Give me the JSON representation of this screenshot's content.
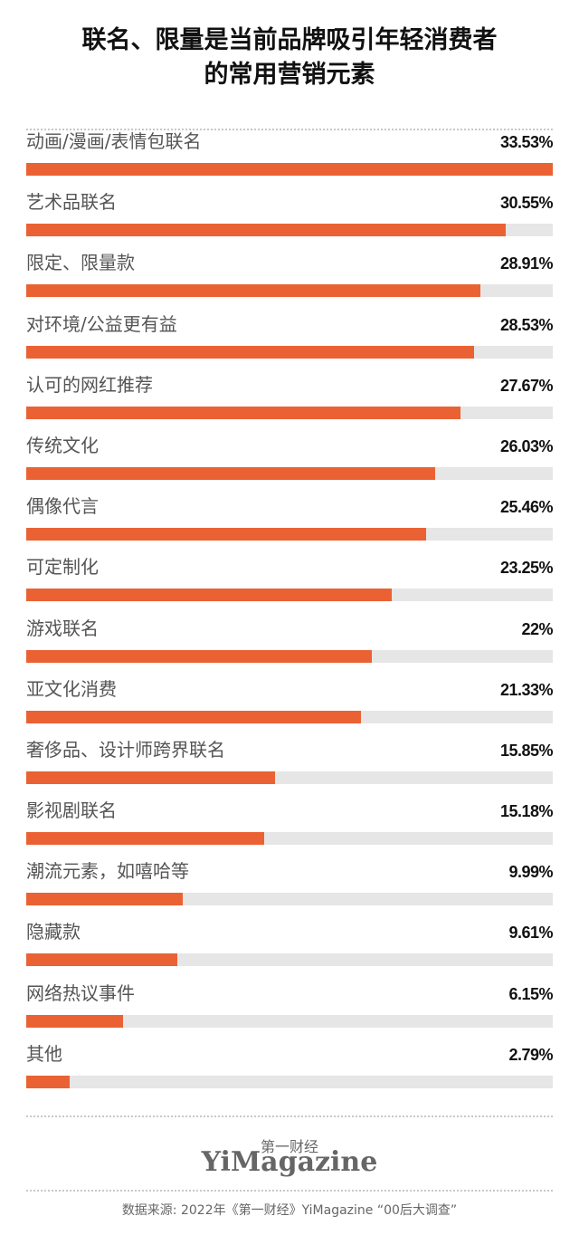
{
  "header": {
    "title_line1": "联名、限量是当前品牌吸引年轻消费者",
    "title_line2": "的常用营销元素"
  },
  "footer": {
    "logo_cn": "第一财经",
    "logo_en": "YiMagazine",
    "source": "数据来源: 2022年《第一财经》YiMagazine “00后大调查”"
  },
  "colors": {
    "bar": "#ea6234",
    "track": "#e6e6e6"
  },
  "chart_data": {
    "type": "bar",
    "orientation": "horizontal",
    "title": "联名、限量是当前品牌吸引年轻消费者的常用营销元素",
    "xlabel": "",
    "ylabel": "",
    "xlim": [
      0,
      33.53
    ],
    "grid": false,
    "legend": null,
    "categories": [
      "动画/漫画/表情包联名",
      "艺术品联名",
      "限定、限量款",
      "对环境/公益更有益",
      "认可的网红推荐",
      "传统文化",
      "偶像代言",
      "可定制化",
      "游戏联名",
      "亚文化消费",
      "奢侈品、设计师跨界联名",
      "影视剧联名",
      "潮流元素，如嘻哈等",
      "隐藏款",
      "网络热议事件",
      "其他"
    ],
    "values": [
      33.53,
      30.55,
      28.91,
      28.53,
      27.67,
      26.03,
      25.46,
      23.25,
      22,
      21.33,
      15.85,
      15.18,
      9.99,
      9.61,
      6.15,
      2.79
    ],
    "value_labels": [
      "33.53%",
      "30.55%",
      "28.91%",
      "28.53%",
      "27.67%",
      "26.03%",
      "25.46%",
      "23.25%",
      "22%",
      "21.33%",
      "15.85%",
      "15.18%",
      "9.99%",
      "9.61%",
      "6.15%",
      "2.79%"
    ],
    "source": "数据来源: 2022年《第一财经》YiMagazine “00后大调查”"
  }
}
